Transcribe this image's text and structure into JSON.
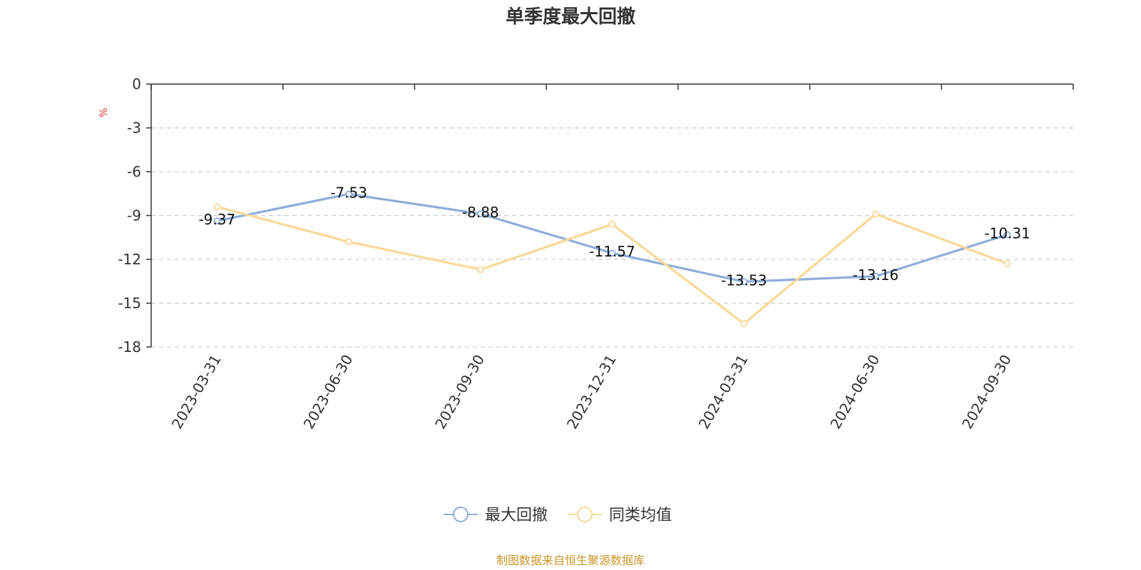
{
  "source_note": "制图数据来自恒生聚源数据库",
  "colors": {
    "source": "#c8962a",
    "unit": "#e8302a",
    "axis": "#333333",
    "grid": "#cccccc"
  },
  "chart_data": {
    "type": "line",
    "title": "单季度最大回撤",
    "ylabel": "%",
    "xlabel": "",
    "categories": [
      "2023-03-31",
      "2023-06-30",
      "2023-09-30",
      "2023-12-31",
      "2024-03-31",
      "2024-06-30",
      "2024-09-30"
    ],
    "ylim": [
      -18,
      0
    ],
    "yticks": [
      0,
      -3,
      -6,
      -9,
      -12,
      -15,
      -18
    ],
    "grid": true,
    "legend_position": "bottom-center",
    "series": [
      {
        "name": "最大回撤",
        "color": "#8eaedb",
        "values": [
          -9.37,
          -7.53,
          -8.88,
          -11.57,
          -13.53,
          -13.16,
          -10.31
        ],
        "data_labels": [
          "-9.37",
          "-7.53",
          "-8.88",
          "-11.57",
          "-13.53",
          "-13.16",
          "-10.31"
        ]
      },
      {
        "name": "同类均值",
        "color": "#f9d898",
        "values": [
          -8.4,
          -10.8,
          -12.7,
          -9.6,
          -16.4,
          -8.9,
          -12.3
        ]
      }
    ]
  }
}
